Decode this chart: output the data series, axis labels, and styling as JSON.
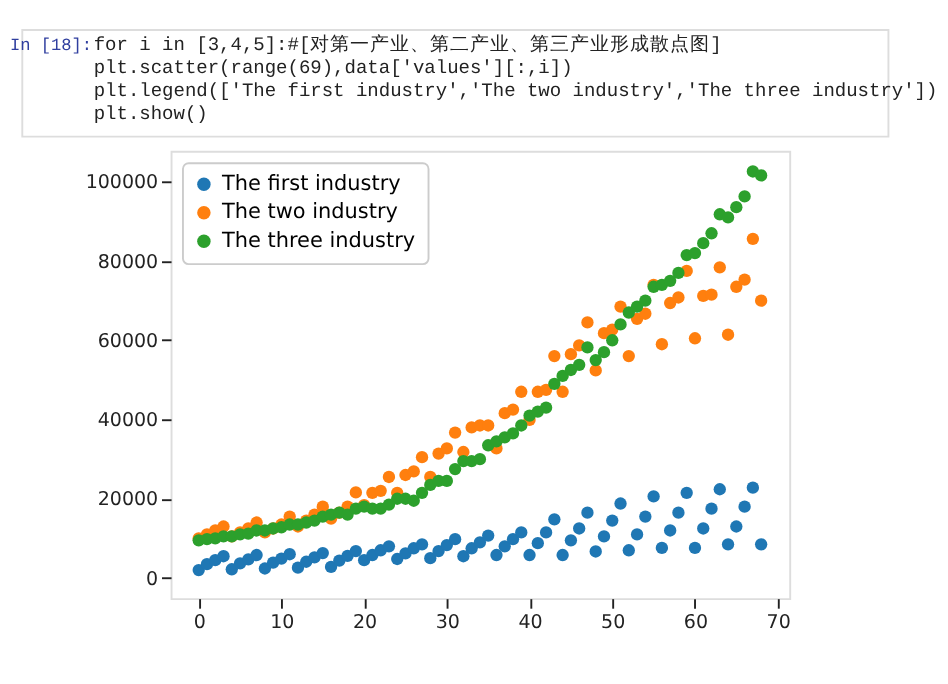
{
  "chart_data": {
    "type": "scatter",
    "annotations": [
      "In [18]:",
      "for i in [3,4,5]:#[对第一产业、第二产业、第三产业形成散点图]",
      "    plt.scatter(range(69),data['values'][:,i])",
      "plt.legend(['The first industry','The two industry','The three industry'])",
      "plt.show()"
    ],
    "x": [
      0,
      1,
      2,
      3,
      4,
      5,
      6,
      7,
      8,
      9,
      10,
      11,
      12,
      13,
      14,
      15,
      16,
      17,
      18,
      19,
      20,
      21,
      22,
      23,
      24,
      25,
      26,
      27,
      28,
      29,
      30,
      31,
      32,
      33,
      34,
      35,
      36,
      37,
      38,
      39,
      40,
      41,
      42,
      43,
      44,
      45,
      46,
      47,
      48,
      49,
      50,
      51,
      52,
      53,
      54,
      55,
      56,
      57,
      58,
      59,
      60,
      61,
      62,
      63,
      64,
      65,
      66,
      67,
      68
    ],
    "series": [
      {
        "name": "The first industry",
        "color": "#1f77b4",
        "values": [
          2000,
          3500,
          4500,
          5500,
          2200,
          3700,
          4700,
          5800,
          2400,
          3900,
          4900,
          6000,
          2600,
          4100,
          5200,
          6300,
          2800,
          4400,
          5600,
          6800,
          4500,
          5800,
          7000,
          8000,
          4800,
          6200,
          7500,
          8500,
          5000,
          6800,
          8300,
          9800,
          5500,
          7500,
          9000,
          10700,
          5800,
          8000,
          9800,
          11500,
          5800,
          8800,
          11500,
          14800,
          5800,
          9500,
          12500,
          16500,
          6700,
          10500,
          14500,
          18800,
          7000,
          11000,
          15500,
          20600,
          7600,
          12000,
          16500,
          21500,
          7600,
          12500,
          17500,
          22400,
          8500,
          13000,
          18000,
          22800,
          8500
        ]
      },
      {
        "name": "The two industry",
        "color": "#ff7f0e",
        "values": [
          10000,
          11000,
          12000,
          13000,
          10500,
          11500,
          12500,
          14000,
          11500,
          12500,
          13500,
          15500,
          13000,
          14500,
          16000,
          18000,
          15000,
          16500,
          18000,
          21600,
          18400,
          21500,
          22000,
          25500,
          21500,
          26000,
          26900,
          30500,
          25500,
          31400,
          32700,
          36700,
          31800,
          38000,
          38500,
          38500,
          32700,
          41600,
          42500,
          47000,
          39900,
          47000,
          47500,
          56000,
          47000,
          56500,
          58700,
          64500,
          52400,
          61800,
          62700,
          68500,
          56000,
          65400,
          66700,
          74000,
          59000,
          69400,
          70800,
          77500,
          60500,
          71200,
          71500,
          78400,
          61400,
          73500,
          75300,
          85600,
          70000
        ]
      },
      {
        "name": "The three industry",
        "color": "#2ca02c",
        "values": [
          9500,
          9800,
          10000,
          10500,
          10500,
          11000,
          11200,
          12000,
          12000,
          12500,
          12800,
          13500,
          13500,
          14000,
          14500,
          15500,
          16000,
          16500,
          16000,
          17500,
          18000,
          17500,
          17500,
          18500,
          20000,
          20000,
          19500,
          21500,
          23500,
          24500,
          24500,
          27500,
          29500,
          29500,
          30000,
          33500,
          34500,
          35500,
          36500,
          38500,
          41000,
          42000,
          43000,
          49000,
          51000,
          52500,
          53800,
          58200,
          55000,
          57000,
          60000,
          64000,
          67000,
          68500,
          70000,
          73500,
          74000,
          75000,
          77000,
          81500,
          82000,
          84500,
          87000,
          91800,
          91000,
          93600,
          96300,
          102600,
          101600
        ]
      }
    ],
    "xlim": [
      -3.4,
      71.4
    ],
    "ylim": [
      -5100,
      107800
    ],
    "xticks": [
      0,
      10,
      20,
      30,
      40,
      50,
      60,
      70
    ],
    "yticks": [
      0,
      20000,
      40000,
      60000,
      80000,
      100000
    ],
    "grid": false,
    "legend": "top left",
    "marker": "circle"
  }
}
